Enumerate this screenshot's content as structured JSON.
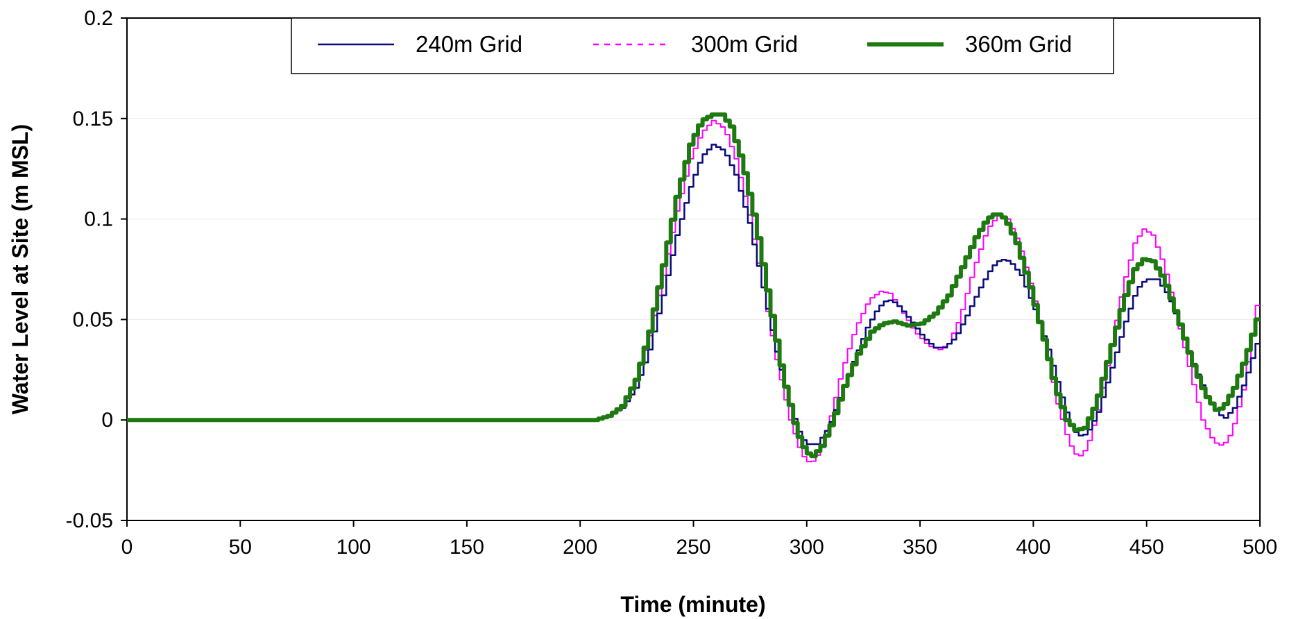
{
  "chart_data": {
    "type": "line",
    "title": "",
    "xlabel": "Time (minute)",
    "ylabel": "Water Level at Site (m MSL)",
    "xlim": [
      0,
      500
    ],
    "ylim": [
      -0.05,
      0.2
    ],
    "x_ticks": [
      0,
      50,
      100,
      150,
      200,
      250,
      300,
      350,
      400,
      450,
      500
    ],
    "x_tick_labels": [
      "0",
      "50",
      "100",
      "150",
      "200",
      "250",
      "300",
      "350",
      "400",
      "450",
      "500"
    ],
    "y_ticks": [
      -0.05,
      0,
      0.05,
      0.1,
      0.15,
      0.2
    ],
    "y_tick_labels": [
      "-0.05",
      "0",
      "0.05",
      "0.1",
      "0.15",
      "0.2"
    ],
    "grid": "horizontal",
    "legend_position": "top",
    "series": [
      {
        "name": "240m Grid",
        "color": "#0a0a78",
        "style": "solid-thin",
        "points": [
          [
            0,
            0
          ],
          [
            208,
            0
          ],
          [
            214,
            0.002
          ],
          [
            220,
            0.006
          ],
          [
            226,
            0.016
          ],
          [
            232,
            0.035
          ],
          [
            238,
            0.062
          ],
          [
            244,
            0.092
          ],
          [
            250,
            0.116
          ],
          [
            255,
            0.131
          ],
          [
            260,
            0.137
          ],
          [
            265,
            0.134
          ],
          [
            270,
            0.122
          ],
          [
            276,
            0.098
          ],
          [
            282,
            0.066
          ],
          [
            288,
            0.034
          ],
          [
            294,
            0.007
          ],
          [
            299,
            -0.009
          ],
          [
            302,
            -0.012
          ],
          [
            306,
            -0.012
          ],
          [
            311,
            -0.004
          ],
          [
            316,
            0.011
          ],
          [
            322,
            0.029
          ],
          [
            328,
            0.046
          ],
          [
            333,
            0.056
          ],
          [
            337,
            0.06
          ],
          [
            341,
            0.058
          ],
          [
            347,
            0.05
          ],
          [
            353,
            0.041
          ],
          [
            358,
            0.036
          ],
          [
            362,
            0.036
          ],
          [
            367,
            0.041
          ],
          [
            372,
            0.052
          ],
          [
            378,
            0.066
          ],
          [
            383,
            0.076
          ],
          [
            387,
            0.08
          ],
          [
            391,
            0.079
          ],
          [
            396,
            0.072
          ],
          [
            402,
            0.055
          ],
          [
            408,
            0.035
          ],
          [
            413,
            0.015
          ],
          [
            417,
            0.0
          ],
          [
            421,
            -0.008
          ],
          [
            425,
            -0.007
          ],
          [
            430,
            0.004
          ],
          [
            436,
            0.026
          ],
          [
            442,
            0.049
          ],
          [
            447,
            0.065
          ],
          [
            451,
            0.07
          ],
          [
            456,
            0.07
          ],
          [
            461,
            0.062
          ],
          [
            466,
            0.047
          ],
          [
            472,
            0.028
          ],
          [
            478,
            0.012
          ],
          [
            483,
            0.003
          ],
          [
            486,
            0.001
          ],
          [
            490,
            0.006
          ],
          [
            495,
            0.02
          ],
          [
            500,
            0.038
          ]
        ]
      },
      {
        "name": "300m Grid",
        "color": "#ff00ff",
        "style": "dotted",
        "points": [
          [
            0,
            0
          ],
          [
            208,
            0
          ],
          [
            214,
            0.002
          ],
          [
            220,
            0.007
          ],
          [
            226,
            0.02
          ],
          [
            232,
            0.042
          ],
          [
            238,
            0.072
          ],
          [
            244,
            0.104
          ],
          [
            250,
            0.13
          ],
          [
            255,
            0.143
          ],
          [
            260,
            0.149
          ],
          [
            265,
            0.145
          ],
          [
            270,
            0.13
          ],
          [
            276,
            0.102
          ],
          [
            282,
            0.066
          ],
          [
            288,
            0.03
          ],
          [
            294,
            0.0
          ],
          [
            299,
            -0.017
          ],
          [
            303,
            -0.022
          ],
          [
            307,
            -0.016
          ],
          [
            312,
            0.002
          ],
          [
            317,
            0.025
          ],
          [
            323,
            0.046
          ],
          [
            329,
            0.06
          ],
          [
            334,
            0.064
          ],
          [
            338,
            0.063
          ],
          [
            343,
            0.055
          ],
          [
            349,
            0.044
          ],
          [
            355,
            0.037
          ],
          [
            360,
            0.035
          ],
          [
            364,
            0.038
          ],
          [
            369,
            0.051
          ],
          [
            375,
            0.075
          ],
          [
            381,
            0.095
          ],
          [
            386,
            0.102
          ],
          [
            390,
            0.1
          ],
          [
            395,
            0.088
          ],
          [
            401,
            0.064
          ],
          [
            407,
            0.035
          ],
          [
            412,
            0.008
          ],
          [
            417,
            -0.011
          ],
          [
            421,
            -0.019
          ],
          [
            425,
            -0.014
          ],
          [
            430,
            0.005
          ],
          [
            436,
            0.038
          ],
          [
            441,
            0.067
          ],
          [
            446,
            0.088
          ],
          [
            450,
            0.095
          ],
          [
            454,
            0.092
          ],
          [
            459,
            0.077
          ],
          [
            465,
            0.05
          ],
          [
            471,
            0.022
          ],
          [
            476,
            0.0
          ],
          [
            481,
            -0.011
          ],
          [
            485,
            -0.013
          ],
          [
            489,
            -0.006
          ],
          [
            494,
            0.015
          ],
          [
            500,
            0.057
          ]
        ]
      },
      {
        "name": "360m Grid",
        "color": "#1e7a10",
        "style": "solid-thick",
        "points": [
          [
            0,
            0
          ],
          [
            208,
            0
          ],
          [
            214,
            0.002
          ],
          [
            220,
            0.007
          ],
          [
            226,
            0.02
          ],
          [
            232,
            0.044
          ],
          [
            238,
            0.077
          ],
          [
            244,
            0.111
          ],
          [
            250,
            0.137
          ],
          [
            255,
            0.149
          ],
          [
            260,
            0.152
          ],
          [
            264,
            0.152
          ],
          [
            268,
            0.146
          ],
          [
            273,
            0.128
          ],
          [
            279,
            0.097
          ],
          [
            285,
            0.058
          ],
          [
            291,
            0.021
          ],
          [
            297,
            -0.006
          ],
          [
            301,
            -0.016
          ],
          [
            304,
            -0.018
          ],
          [
            308,
            -0.013
          ],
          [
            313,
            0.0
          ],
          [
            318,
            0.017
          ],
          [
            324,
            0.033
          ],
          [
            330,
            0.044
          ],
          [
            335,
            0.048
          ],
          [
            340,
            0.049
          ],
          [
            346,
            0.047
          ],
          [
            352,
            0.048
          ],
          [
            358,
            0.053
          ],
          [
            364,
            0.062
          ],
          [
            370,
            0.076
          ],
          [
            376,
            0.091
          ],
          [
            381,
            0.1
          ],
          [
            385,
            0.103
          ],
          [
            389,
            0.1
          ],
          [
            394,
            0.088
          ],
          [
            400,
            0.066
          ],
          [
            406,
            0.04
          ],
          [
            411,
            0.016
          ],
          [
            416,
            0.0
          ],
          [
            420,
            -0.005
          ],
          [
            424,
            -0.004
          ],
          [
            429,
            0.008
          ],
          [
            435,
            0.033
          ],
          [
            441,
            0.059
          ],
          [
            446,
            0.075
          ],
          [
            450,
            0.08
          ],
          [
            454,
            0.079
          ],
          [
            459,
            0.07
          ],
          [
            465,
            0.051
          ],
          [
            471,
            0.03
          ],
          [
            477,
            0.013
          ],
          [
            482,
            0.005
          ],
          [
            485,
            0.006
          ],
          [
            490,
            0.016
          ],
          [
            495,
            0.031
          ],
          [
            500,
            0.05
          ]
        ]
      }
    ]
  }
}
